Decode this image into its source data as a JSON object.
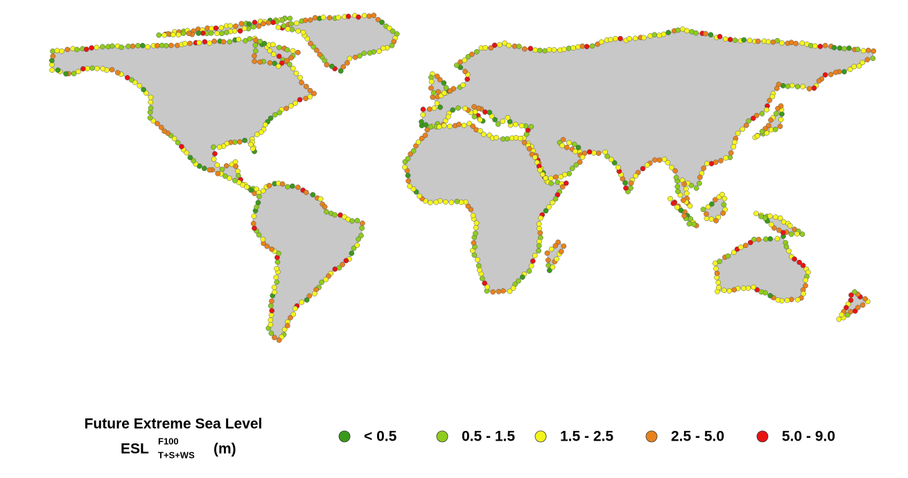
{
  "legend": {
    "title": "Future Extreme Sea Level",
    "symbol": "ESL",
    "superscript": "F100",
    "subscript": "T+S+WS",
    "unit": "(m)",
    "items": [
      {
        "label": "< 0.5",
        "color": "#3a9a1a"
      },
      {
        "label": "0.5 - 1.5",
        "color": "#8fcc1e"
      },
      {
        "label": "1.5 - 2.5",
        "color": "#f5f51e"
      },
      {
        "label": "2.5 - 5.0",
        "color": "#e8821e"
      },
      {
        "label": "5.0 - 9.0",
        "color": "#e81414"
      }
    ]
  }
}
